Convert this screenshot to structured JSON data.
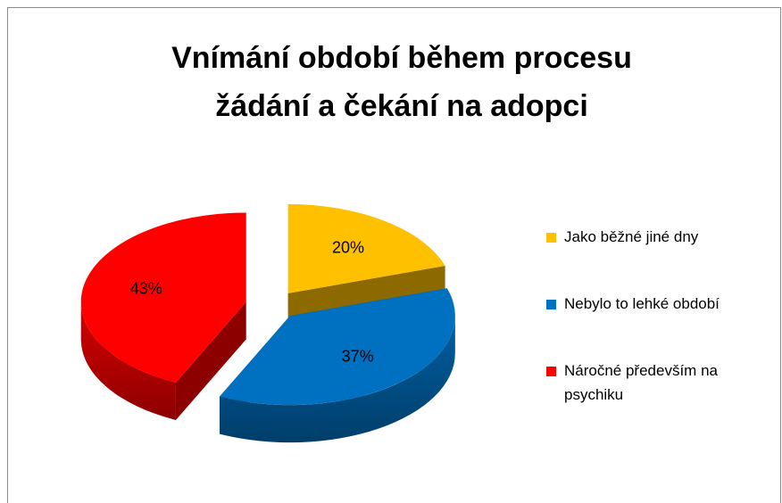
{
  "chart_data": {
    "type": "pie3d",
    "title": "Vnímání období během procesu žádání a čekání na adopci",
    "categories": [
      "Jako běžné jiné dny",
      "Nebylo to lehké období",
      "Náročné především na psychiku"
    ],
    "values": [
      20,
      37,
      43
    ],
    "value_labels": [
      "20%",
      "37%",
      "43%"
    ],
    "colors": [
      "#ffc000",
      "#0070c0",
      "#ff0000"
    ],
    "legend": "right"
  }
}
